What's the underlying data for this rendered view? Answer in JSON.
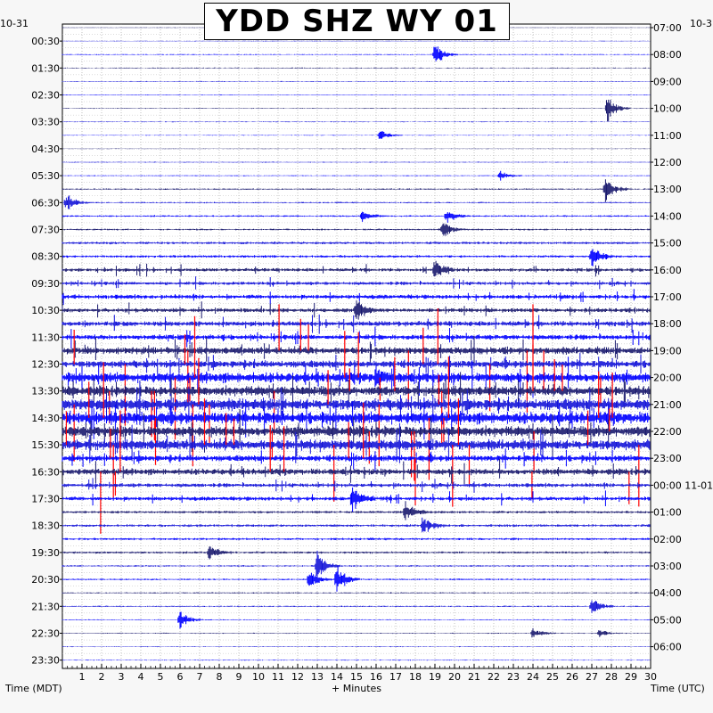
{
  "title": "YDD SHZ WY 01",
  "corner_left": "10-31",
  "corner_right": "10-3",
  "chart_data": {
    "type": "helicorder",
    "title": "YDD SHZ WY 01",
    "xlabel": "+ Minutes",
    "ylabel_left": "Time (MDT)",
    "ylabel_right": "Time (UTC)",
    "xlim": [
      0,
      30
    ],
    "x_ticks": [
      "1",
      "2",
      "3",
      "4",
      "5",
      "6",
      "7",
      "8",
      "9",
      "10",
      "11",
      "12",
      "13",
      "14",
      "15",
      "16",
      "17",
      "18",
      "19",
      "20",
      "21",
      "22",
      "23",
      "24",
      "25",
      "26",
      "27",
      "28",
      "29",
      "30"
    ],
    "left_time_labels": [
      "00:30",
      "01:30",
      "02:30",
      "03:30",
      "04:30",
      "05:30",
      "06:30",
      "07:30",
      "08:30",
      "09:30",
      "10:30",
      "11:30",
      "12:30",
      "13:30",
      "14:30",
      "15:30",
      "16:30",
      "17:30",
      "18:30",
      "19:30",
      "20:30",
      "21:30",
      "22:30",
      "23:30"
    ],
    "right_time_labels": [
      "07:00",
      "08:00",
      "09:00",
      "10:00",
      "11:00",
      "12:00",
      "13:00",
      "14:00",
      "15:00",
      "16:00",
      "17:00",
      "18:00",
      "19:00",
      "20:00",
      "21:00",
      "22:00",
      "23:00",
      "00:00 11-01",
      "01:00",
      "02:00",
      "03:00",
      "04:00",
      "05:00",
      "06:00"
    ],
    "trace_count": 48,
    "minutes_per_trace": 30,
    "trace_colors": [
      "#1a1a6e",
      "#1414d8",
      "#0000ff"
    ],
    "clip_color": "#ff0000",
    "grid": true,
    "activity_by_hour": [
      0.25,
      0.35,
      0.3,
      0.3,
      0.25,
      0.35,
      0.5,
      0.6,
      0.9,
      1.2,
      1.5,
      1.8,
      2.6,
      3.6,
      4.2,
      3.8,
      2.2,
      1.4,
      0.9,
      0.8,
      0.55,
      0.45,
      0.35,
      0.3
    ],
    "events": [
      {
        "row": 2,
        "minute": 19.0,
        "amp": 14
      },
      {
        "row": 6,
        "minute": 27.8,
        "amp": 14
      },
      {
        "row": 8,
        "minute": 16.2,
        "amp": 6
      },
      {
        "row": 11,
        "minute": 22.3,
        "amp": 5
      },
      {
        "row": 12,
        "minute": 27.7,
        "amp": 14
      },
      {
        "row": 13,
        "minute": 0.2,
        "amp": 10
      },
      {
        "row": 14,
        "minute": 15.3,
        "amp": 7
      },
      {
        "row": 14,
        "minute": 19.6,
        "amp": 8
      },
      {
        "row": 15,
        "minute": 19.4,
        "amp": 10
      },
      {
        "row": 17,
        "minute": 27.0,
        "amp": 12
      },
      {
        "row": 18,
        "minute": 19.0,
        "amp": 10
      },
      {
        "row": 21,
        "minute": 15.0,
        "amp": 12
      },
      {
        "row": 26,
        "minute": 16.0,
        "amp": 10
      },
      {
        "row": 35,
        "minute": 14.8,
        "amp": 14
      },
      {
        "row": 36,
        "minute": 17.5,
        "amp": 12
      },
      {
        "row": 37,
        "minute": 18.4,
        "amp": 10
      },
      {
        "row": 39,
        "minute": 7.5,
        "amp": 8
      },
      {
        "row": 40,
        "minute": 13.0,
        "amp": 16
      },
      {
        "row": 41,
        "minute": 14.0,
        "amp": 16
      },
      {
        "row": 41,
        "minute": 12.6,
        "amp": 12
      },
      {
        "row": 43,
        "minute": 27.0,
        "amp": 10
      },
      {
        "row": 44,
        "minute": 6.0,
        "amp": 10
      },
      {
        "row": 45,
        "minute": 24.0,
        "amp": 7
      },
      {
        "row": 45,
        "minute": 27.4,
        "amp": 5
      }
    ]
  }
}
